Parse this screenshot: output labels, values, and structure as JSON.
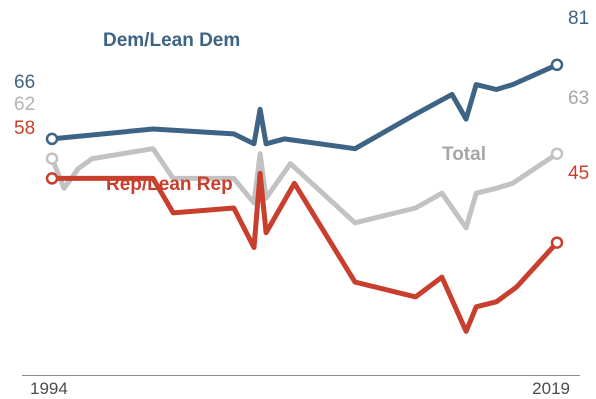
{
  "chart_data": {
    "type": "line",
    "title": "",
    "xlabel": "",
    "ylabel": "",
    "xlim": [
      1994,
      2019
    ],
    "ylim": [
      20,
      100
    ],
    "grid": false,
    "legend": "inline labels",
    "x_tick_labels": [
      "1994",
      "2019"
    ],
    "series": [
      {
        "name": "Dem/Lean Dem",
        "color": "#3d6385",
        "x": [
          1994,
          1999,
          2003,
          2004,
          2004.3,
          2004.6,
          2005.5,
          2009,
          2012,
          2013.8,
          2014.5,
          2015,
          2016,
          2016.8,
          2019
        ],
        "values": [
          66,
          68,
          67,
          65,
          72,
          65,
          66,
          64,
          71,
          75,
          70,
          77,
          76,
          77,
          81
        ],
        "start_label": "66",
        "end_label": "81"
      },
      {
        "name": "Total",
        "color": "#c2c2c2",
        "x": [
          1994,
          1994.6,
          1995.3,
          1996,
          1999,
          2000,
          2003,
          2004,
          2004.3,
          2004.6,
          2005.8,
          2009,
          2012,
          2013.3,
          2014.5,
          2015,
          2016,
          2016.8,
          2019
        ],
        "values": [
          62,
          56,
          60,
          62,
          64,
          58,
          58,
          53,
          63,
          54,
          61,
          49,
          52,
          55,
          48,
          55,
          56,
          57,
          63
        ],
        "start_label": "62",
        "end_label": "63"
      },
      {
        "name": "Rep/Lean Rep",
        "color": "#c93f2e",
        "x": [
          1994,
          1999,
          2000,
          2003,
          2004,
          2004.3,
          2004.6,
          2006,
          2009,
          2012,
          2013.3,
          2014.5,
          2015,
          2016,
          2017,
          2019
        ],
        "values": [
          58,
          58,
          51,
          52,
          44,
          59,
          47,
          57,
          37,
          34,
          38,
          27,
          32,
          33,
          36,
          45
        ],
        "start_label": "58",
        "end_label": "45"
      }
    ]
  },
  "colors": {
    "dem": "#3d6385",
    "total": "#c2c2c2",
    "rep": "#c93f2e",
    "total_label": "#a6a6a6",
    "axis": "#8c8c8c"
  }
}
